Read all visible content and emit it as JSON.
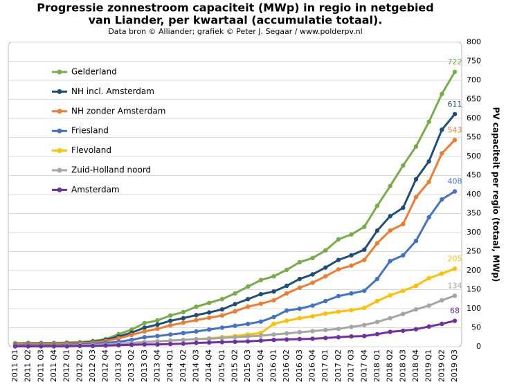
{
  "chart_data": {
    "type": "line",
    "title": [
      "Progressie zonnestroom capaciteit (MWp) in regio in netgebied",
      "van Liander, per kwartaal (accumulatie totaal)."
    ],
    "subtitle": "Data bron © Alliander; grafiek © Peter J. Segaar / www.polderpv.nl",
    "y_label": "PV capaciteit per regio (totaal, MWp)",
    "categories": [
      "2011 Q1",
      "2011 Q2",
      "2011 Q3",
      "2011 Q4",
      "2012 Q1",
      "2012 Q2",
      "2012 Q3",
      "2012 Q4",
      "2013 Q1",
      "2013 Q2",
      "2013 Q3",
      "2013 Q4",
      "2014 Q1",
      "2014 Q2",
      "2014 Q3",
      "2014 Q4",
      "2015 Q1",
      "2015 Q2",
      "2015 Q3",
      "2015 Q4",
      "2016 Q1",
      "2016 Q2",
      "2016 Q3",
      "2016 Q4",
      "2017 Q1",
      "2017 Q2",
      "2017 Q3",
      "2017 Q4",
      "2018 Q1",
      "2018 Q2",
      "2018 Q3",
      "2018 Q4",
      "2019 Q1",
      "2019 Q2",
      "2019 Q3"
    ],
    "series": [
      {
        "name": "Gelderland",
        "color": "#77ac48",
        "values": [
          9,
          10,
          10,
          10,
          11,
          12,
          15,
          20,
          33,
          45,
          62,
          69,
          82,
          91,
          105,
          115,
          125,
          140,
          158,
          175,
          185,
          202,
          222,
          233,
          253,
          282,
          295,
          315,
          370,
          422,
          476,
          526,
          591,
          664,
          722
        ]
      },
      {
        "name": "NH incl. Amsterdam",
        "color": "#1f4e79",
        "values": [
          8,
          8,
          8,
          8,
          9,
          10,
          13,
          18,
          27,
          37,
          50,
          58,
          68,
          75,
          83,
          90,
          98,
          112,
          125,
          138,
          145,
          160,
          178,
          190,
          208,
          228,
          240,
          255,
          305,
          343,
          365,
          440,
          487,
          570,
          611
        ]
      },
      {
        "name": "NH zonder Amsterdam",
        "color": "#ed7d31",
        "values": [
          7,
          7,
          7,
          7,
          8,
          9,
          11,
          15,
          22,
          31,
          40,
          47,
          56,
          63,
          70,
          76,
          82,
          93,
          105,
          113,
          122,
          140,
          155,
          168,
          185,
          203,
          213,
          228,
          272,
          305,
          322,
          393,
          433,
          508,
          543
        ]
      },
      {
        "name": "Friesland",
        "color": "#4472c4",
        "values": [
          4,
          4,
          4,
          4,
          5,
          6,
          8,
          10,
          13,
          18,
          25,
          28,
          32,
          36,
          40,
          45,
          50,
          55,
          60,
          66,
          78,
          95,
          100,
          108,
          120,
          133,
          140,
          147,
          178,
          225,
          240,
          278,
          340,
          387,
          408
        ]
      },
      {
        "name": "Flevoland",
        "color": "#ffc000",
        "values": [
          2,
          2,
          2,
          2,
          3,
          3,
          4,
          5,
          7,
          9,
          12,
          14,
          16,
          18,
          20,
          22,
          25,
          28,
          32,
          36,
          60,
          68,
          75,
          80,
          87,
          92,
          96,
          102,
          120,
          135,
          147,
          160,
          180,
          192,
          205
        ]
      },
      {
        "name": "Zuid-Holland noord",
        "color": "#a5a5a5",
        "values": [
          2,
          2,
          2,
          2,
          3,
          4,
          5,
          6,
          8,
          10,
          12,
          14,
          16,
          18,
          20,
          21,
          23,
          25,
          27,
          29,
          32,
          35,
          38,
          41,
          44,
          47,
          52,
          57,
          65,
          75,
          86,
          98,
          108,
          122,
          134
        ]
      },
      {
        "name": "Amsterdam",
        "color": "#7030a0",
        "values": [
          1,
          1,
          1,
          1,
          1,
          2,
          2,
          3,
          4,
          5,
          6,
          6,
          7,
          8,
          10,
          11,
          12,
          13,
          14,
          16,
          18,
          19,
          20,
          21,
          23,
          25,
          27,
          28,
          33,
          39,
          42,
          46,
          53,
          60,
          68
        ]
      }
    ],
    "ylim": [
      0,
      800
    ],
    "yticks": [
      0,
      50,
      100,
      150,
      200,
      250,
      300,
      350,
      400,
      450,
      500,
      550,
      600,
      650,
      700,
      750,
      800
    ],
    "grid": true,
    "legend": "upper left"
  }
}
